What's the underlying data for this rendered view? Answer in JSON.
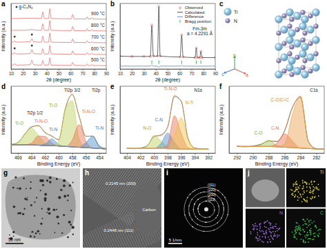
{
  "chart_data": [
    {
      "label": "a",
      "type": "line",
      "x_label": "2θ (degree)",
      "y_label": "Intensity (a.u.)",
      "x": [
        10,
        12,
        13,
        14,
        26,
        27.5,
        29,
        35.5,
        36.7,
        38,
        41.5,
        42.6,
        43.7,
        60.5,
        61.8,
        63,
        73,
        74.1,
        75,
        77,
        77.9,
        79,
        90
      ],
      "xlim": [
        10,
        90
      ],
      "xticks": [
        10,
        20,
        30,
        40,
        50,
        60,
        70,
        80,
        90
      ],
      "ylim": [
        0,
        100
      ],
      "tick_labels": "x",
      "series": [
        {
          "name": "900 °C",
          "color": "#e35d5a",
          "values": [
            77,
            77,
            77,
            77,
            77.5,
            77.5,
            77.5,
            77,
            87,
            77,
            77,
            92,
            77,
            76.5,
            83,
            76.5,
            76.3,
            79.5,
            76.3,
            76.3,
            78.5,
            76.3,
            76
          ]
        },
        {
          "name": "800 °C",
          "color": "#e35d5a",
          "values": [
            59,
            59,
            59,
            59,
            59.5,
            60.5,
            59.5,
            59,
            69,
            59,
            59,
            74,
            59,
            58.5,
            65,
            58.5,
            58.3,
            61.5,
            58.3,
            58.3,
            60.5,
            58.3,
            58
          ]
        },
        {
          "name": "700 °C",
          "color": "#e35d5a",
          "values": [
            41,
            41,
            43,
            41,
            41.5,
            46.5,
            41.5,
            41,
            50,
            41,
            41,
            55,
            41,
            40.5,
            46,
            40.5,
            40.3,
            43,
            40.3,
            40.3,
            42,
            40.3,
            40
          ]
        },
        {
          "name": "600 °C",
          "color": "#e35d5a",
          "values": [
            23,
            23,
            25,
            23,
            23.5,
            29.5,
            23.5,
            23,
            31,
            23,
            23,
            36,
            23,
            22.5,
            27.5,
            22.5,
            22.3,
            24.8,
            22.3,
            22.3,
            24,
            22.3,
            22
          ]
        },
        {
          "name": "500 °C",
          "color": "#e35d5a",
          "values": [
            6,
            6,
            8,
            6,
            6.5,
            13.5,
            6.5,
            6,
            13,
            6,
            6,
            17,
            6,
            5.5,
            10,
            5.5,
            5.3,
            7.5,
            5.3,
            5.3,
            6.8,
            5.3,
            5
          ]
        }
      ],
      "annotations": [
        {
          "text": "♦ g-C₃N₄",
          "x": 21,
          "y": 93
        },
        {
          "text": "♦",
          "x": 13,
          "y": 47
        },
        {
          "text": "♦",
          "x": 27.5,
          "y": 51
        },
        {
          "text": "♦",
          "x": 13,
          "y": 29
        },
        {
          "text": "♦",
          "x": 27.5,
          "y": 34
        }
      ]
    },
    {
      "label": "b",
      "type": "line",
      "x_label": "2θ (degree)",
      "y_label": "Intensity (a.u.)",
      "x": [
        10,
        20,
        30,
        35.5,
        36.7,
        38,
        41.5,
        42.6,
        43.7,
        60.5,
        61.8,
        63,
        73,
        74.1,
        75,
        77,
        77.9,
        79,
        90
      ],
      "xlim": [
        10,
        90
      ],
      "xticks": [
        10,
        20,
        30,
        40,
        50,
        60,
        70,
        80,
        90
      ],
      "ylim": [
        -15,
        100
      ],
      "tick_labels": "x",
      "legend": "upper right",
      "series": [
        {
          "name": "Observed",
          "type": "scatter",
          "marker": "circle",
          "color": "#e0524e",
          "values": [
            8,
            7,
            7,
            7,
            62,
            8,
            8,
            95,
            8,
            6,
            45,
            6,
            5,
            22,
            5,
            5,
            16,
            5,
            5
          ]
        },
        {
          "name": "Calculated",
          "color": "#222222",
          "values": [
            7.5,
            7,
            7,
            7,
            61,
            7.5,
            7.5,
            94,
            7.5,
            6,
            44,
            6,
            5,
            21.5,
            5,
            5,
            15.5,
            5,
            5
          ]
        },
        {
          "name": "Difference",
          "color": "#3a6fd0",
          "values": [
            -10,
            -10,
            -10,
            -10,
            -8,
            -10,
            -10,
            -12,
            -10,
            -10,
            -9,
            -10,
            -10,
            -10.5,
            -10,
            -10,
            -10,
            -10,
            -10
          ]
        },
        {
          "name": "Bragg position",
          "type": "scatter",
          "marker": "tick",
          "color": "#2aa84a",
          "x": [
            36.7,
            42.6,
            61.8,
            74.1,
            77.9
          ],
          "values": [
            -3,
            -3,
            -3,
            -3,
            -3
          ]
        }
      ],
      "annotations": [
        {
          "text": "Fm-3m",
          "x": 77,
          "y": 53
        },
        {
          "text": "a = 4.2291 Å",
          "x": 77,
          "y": 44
        }
      ]
    },
    {
      "label": "d",
      "type": "line",
      "x_label": "Binding Energy (eV)",
      "y_label": "Intensity (a.u.)",
      "x": [
        467,
        466,
        465,
        464,
        463,
        462,
        461,
        460,
        459,
        458,
        457,
        456,
        455,
        454,
        453
      ],
      "xlim": [
        467,
        453
      ],
      "xticks": [
        466,
        464,
        462,
        460,
        458,
        456,
        454
      ],
      "ylim": [
        0,
        80
      ],
      "tick_labels": "x",
      "series": [
        {
          "color": "#9a9a9a",
          "line_style": "dashed",
          "values": [
            10,
            10,
            10,
            10,
            9.5,
            9,
            9,
            8.5,
            8,
            7.5,
            7,
            6.5,
            6,
            5.5,
            5
          ]
        },
        {
          "color": "#333333",
          "values": [
            10.5,
            12.5,
            22.5,
            31,
            33,
            24.5,
            20.5,
            16,
            54,
            70,
            44.5,
            20,
            20.5,
            8,
            5.5
          ]
        },
        {
          "color": "#e8a04a",
          "values": [
            10,
            13,
            22,
            32,
            32.5,
            25,
            20,
            16.5,
            53,
            70.5,
            44,
            20.5,
            20,
            8.5,
            5
          ]
        },
        {
          "type": "area",
          "color": "#bcd05a",
          "values": [
            10,
            13,
            22,
            30,
            21.5,
            12,
            9,
            8.5,
            8,
            7.5,
            7,
            6.5,
            6,
            5.5,
            5
          ]
        },
        {
          "type": "area",
          "color": "#e8704d",
          "values": [
            10,
            10,
            10,
            12,
            20.5,
            20,
            12,
            8.5,
            8,
            7.5,
            7,
            6.5,
            6,
            5.5,
            5
          ]
        },
        {
          "type": "area",
          "color": "#4a8ac9",
          "values": [
            10,
            10,
            10,
            10,
            9.5,
            11,
            17,
            10.5,
            8,
            7.5,
            7,
            6.5,
            6,
            5.5,
            5
          ]
        },
        {
          "type": "area",
          "color": "#bcd05a",
          "values": [
            10,
            10,
            10,
            10,
            9.5,
            9,
            9,
            14.5,
            53,
            62.5,
            17,
            6.5,
            6,
            5.5,
            5
          ]
        },
        {
          "type": "area",
          "color": "#e8704d",
          "values": [
            10,
            10,
            10,
            10,
            9.5,
            9,
            9,
            8.5,
            8,
            15.5,
            34,
            14.5,
            6,
            5.5,
            5
          ]
        },
        {
          "type": "area",
          "color": "#4a8ac9",
          "values": [
            10,
            10,
            10,
            10,
            9.5,
            9,
            9,
            8.5,
            8,
            7.5,
            7,
            12.5,
            20,
            8.5,
            5
          ]
        }
      ],
      "annotations": [
        {
          "text": "Ti2p",
          "x": 454.5,
          "y": 73
        },
        {
          "text": "Ti2p 3/2",
          "x": 458,
          "y": 73
        },
        {
          "text": "Ti2p 1/2",
          "x": 463.5,
          "y": 46
        },
        {
          "text": "Ti-O",
          "x": 465.8,
          "y": 34,
          "color": "#8fa832"
        },
        {
          "text": "Ti-N-O",
          "x": 462.6,
          "y": 36,
          "color": "#e8704d"
        },
        {
          "text": "Ti-N",
          "x": 460.8,
          "y": 26,
          "color": "#3b7bc0"
        },
        {
          "text": "Ti-O",
          "x": 460.8,
          "y": 55,
          "color": "#8fa832"
        },
        {
          "text": "Ti-N-O",
          "x": 455.6,
          "y": 48,
          "color": "#e8704d"
        },
        {
          "text": "Ti-N",
          "x": 454,
          "y": 28,
          "color": "#3b7bc0"
        }
      ]
    },
    {
      "label": "e",
      "type": "line",
      "x_label": "Binding Energy (eV)",
      "y_label": "Intensity (a.u.)",
      "x": [
        404,
        403,
        402,
        401,
        400,
        399,
        398,
        397,
        396,
        395,
        394,
        393,
        392
      ],
      "xlim": [
        405,
        391
      ],
      "xticks": [
        404,
        402,
        400,
        398,
        396,
        394,
        392
      ],
      "ylim": [
        0,
        85
      ],
      "tick_labels": "x",
      "series": [
        {
          "color": "#9a9a9a",
          "line_style": "dashed",
          "values": [
            6,
            6,
            6,
            6,
            6,
            6,
            5.5,
            5.5,
            5,
            5,
            5,
            5,
            5
          ]
        },
        {
          "color": "#333333",
          "values": [
            6.5,
            5.5,
            6.5,
            9.5,
            21,
            23,
            33,
            72,
            66,
            18.5,
            6.5,
            5.5,
            5
          ]
        },
        {
          "color": "#e8a04a",
          "values": [
            6,
            6,
            6,
            9,
            22,
            22,
            33.5,
            73.5,
            65,
            19,
            6,
            5,
            5
          ]
        },
        {
          "type": "area",
          "color": "#bcd05a",
          "values": [
            6,
            6,
            6,
            9,
            22,
            16,
            7.5,
            5.5,
            5,
            5,
            5,
            5,
            5
          ]
        },
        {
          "type": "area",
          "color": "#4a8ac9",
          "values": [
            6,
            6,
            6,
            6,
            6,
            12,
            25.5,
            13.5,
            5,
            5,
            5,
            5,
            5
          ]
        },
        {
          "type": "area",
          "color": "#e8704d",
          "values": [
            6,
            6,
            6,
            6,
            6,
            6,
            11.5,
            47.5,
            25,
            7,
            5,
            5,
            5
          ]
        },
        {
          "type": "area",
          "color": "#f0c04a",
          "values": [
            6,
            6,
            6,
            6,
            6,
            6,
            5.5,
            23.5,
            45,
            17,
            6,
            5,
            5
          ]
        }
      ],
      "annotations": [
        {
          "text": "N1s",
          "x": 393.5,
          "y": 78
        },
        {
          "text": "N-O",
          "x": 401,
          "y": 30,
          "color": "#8fa832"
        },
        {
          "text": "C-N",
          "x": 399.3,
          "y": 40,
          "color": "#3b7bc0"
        },
        {
          "text": "Ti-N-O",
          "x": 397.6,
          "y": 80,
          "color": "#e8704d"
        },
        {
          "text": "N-Ti",
          "x": 394.8,
          "y": 62,
          "color": "#d9a21e"
        }
      ]
    },
    {
      "label": "f",
      "type": "line",
      "x_label": "Binding Energy (eV)",
      "y_label": "Intensity (a.u.)",
      "x": [
        292,
        291,
        290,
        289,
        288,
        287,
        286,
        285,
        284,
        283,
        282,
        281
      ],
      "xlim": [
        293,
        281
      ],
      "xticks": [
        292,
        290,
        288,
        286,
        284,
        282
      ],
      "ylim": [
        0,
        80
      ],
      "tick_labels": "x",
      "series": [
        {
          "color": "#9a9a9a",
          "line_style": "dashed",
          "values": [
            8,
            8,
            8,
            8,
            8,
            7.5,
            7,
            6.5,
            6,
            5.5,
            5,
            5
          ]
        },
        {
          "color": "#333333",
          "values": [
            8.5,
            7.5,
            8.5,
            10.5,
            14.5,
            14,
            26.5,
            55,
            67,
            14,
            5.5,
            5
          ]
        },
        {
          "color": "#d9822b",
          "values": [
            8,
            8,
            8,
            10,
            15,
            13.5,
            27,
            54.5,
            68,
            13.5,
            5,
            5
          ]
        },
        {
          "type": "area",
          "color": "#9cc45a",
          "values": [
            8,
            8,
            8,
            10,
            15,
            9.5,
            7,
            6.5,
            6,
            5.5,
            5,
            5
          ]
        },
        {
          "type": "area",
          "color": "#e8704d",
          "values": [
            8,
            8,
            8,
            8,
            8,
            11.5,
            23,
            14.5,
            6,
            5.5,
            5,
            5
          ]
        },
        {
          "type": "area",
          "color": "#e8a04a",
          "values": [
            8,
            8,
            8,
            8,
            8,
            7.5,
            11,
            46.5,
            68,
            13.5,
            5,
            5
          ]
        }
      ],
      "annotations": [
        {
          "text": "C1s",
          "x": 282.3,
          "y": 73
        },
        {
          "text": "C-C/C=C",
          "x": 286.6,
          "y": 62,
          "color": "#d9822b"
        },
        {
          "text": "C-N",
          "x": 287.2,
          "y": 28,
          "color": "#e8704d"
        },
        {
          "text": "C-O",
          "x": 289.3,
          "y": 22,
          "color": "#7aa83a"
        }
      ]
    }
  ],
  "structure": {
    "label": "c",
    "atoms": [
      {
        "name": "Ti",
        "color": "#8fcbea"
      },
      {
        "name": "N",
        "color": "#9a8cc0"
      }
    ],
    "axes": [
      {
        "name": "b",
        "color": "#3aa655"
      },
      {
        "name": "a",
        "color": "#d9534f"
      },
      {
        "name": "c",
        "color": "#3b6fd4"
      }
    ]
  },
  "micrographs": [
    {
      "label": "g",
      "scale_bar": "50 nm"
    },
    {
      "label": "h",
      "annotations": [
        "0.2145 nm (200)",
        "Carbon",
        "0.2448 nm (111)"
      ]
    },
    {
      "label": "i",
      "rings": [
        "(111)",
        "(200)",
        "(220)",
        "(311)"
      ],
      "scale_bar": "5 1/nm"
    },
    {
      "label": "j",
      "maps": [
        {
          "name": "Ti",
          "color": "#d8d03a"
        },
        {
          "name": "N",
          "color": "#9a6ad8"
        },
        {
          "name": "C",
          "color": "#45b34e"
        }
      ]
    }
  ]
}
